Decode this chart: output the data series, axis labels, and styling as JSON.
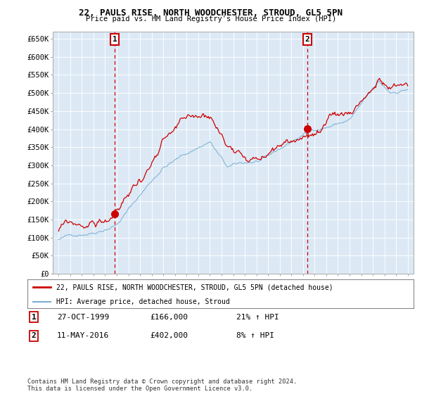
{
  "title": "22, PAULS RISE, NORTH WOODCHESTER, STROUD, GL5 5PN",
  "subtitle": "Price paid vs. HM Land Registry's House Price Index (HPI)",
  "ylim": [
    0,
    670000
  ],
  "yticks": [
    0,
    50000,
    100000,
    150000,
    200000,
    250000,
    300000,
    350000,
    400000,
    450000,
    500000,
    550000,
    600000,
    650000
  ],
  "ytick_labels": [
    "£0",
    "£50K",
    "£100K",
    "£150K",
    "£200K",
    "£250K",
    "£300K",
    "£350K",
    "£400K",
    "£450K",
    "£500K",
    "£550K",
    "£600K",
    "£650K"
  ],
  "sale1_date": "27-OCT-1999",
  "sale1_price": 166000,
  "sale1_label": "£166,000",
  "sale1_hpi_pct": "21% ↑ HPI",
  "sale2_date": "11-MAY-2016",
  "sale2_price": 402000,
  "sale2_label": "£402,000",
  "sale2_hpi_pct": "8% ↑ HPI",
  "legend_line1": "22, PAULS RISE, NORTH WOODCHESTER, STROUD, GL5 5PN (detached house)",
  "legend_line2": "HPI: Average price, detached house, Stroud",
  "footer": "Contains HM Land Registry data © Crown copyright and database right 2024.\nThis data is licensed under the Open Government Licence v3.0.",
  "line_color_red": "#cc0000",
  "line_color_blue": "#7aafd4",
  "background_color": "#ffffff",
  "plot_bg_color": "#dce9f5",
  "grid_color": "#ffffff",
  "sale1_x": 1999.83,
  "sale2_x": 2016.37,
  "xlim_left": 1994.5,
  "xlim_right": 2025.5
}
